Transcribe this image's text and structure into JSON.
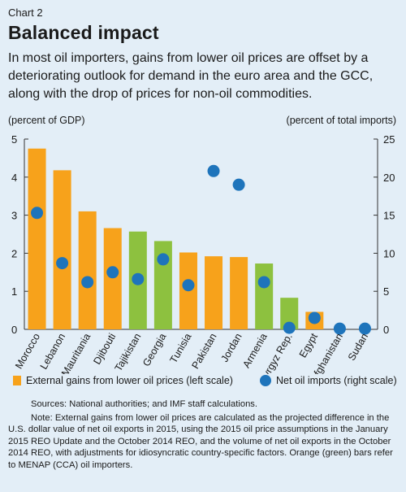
{
  "header": {
    "chart_label": "Chart 2",
    "title": "Balanced impact",
    "subtitle": "In most oil importers, gains from lower oil prices are offset by a deteriorating outlook for demand in the euro area and the GCC, along with the drop of prices for non-oil commodities."
  },
  "axes": {
    "left_label": "(percent of GDP)",
    "right_label": "(percent of total imports)"
  },
  "legend": {
    "bars_label": "External gains from lower oil prices (left scale)",
    "dots_label": "Net oil imports (right scale)"
  },
  "notes": {
    "source": "Sources: National authorities; and IMF staff calculations.",
    "note": "Note: External  gains from lower oil prices are calculated as the projected difference in the U.S. dollar value of net oil exports in 2015, using the 2015 oil price assumptions in the January 2015 REO Update and the October 2014 REO, and the volume of net oil exports in the October 2014 REO, with adjustments for idiosyncratic country-specific factors. Orange (green) bars refer to MENAP (CCA) oil importers."
  },
  "colors": {
    "orange": "#f7a21b",
    "green": "#8dc13f",
    "dot": "#1e74bb",
    "background": "#e3eef7"
  },
  "chart_data": {
    "type": "bar",
    "categories": [
      "Morocco",
      "Lebanon",
      "Mauritania",
      "Djibouti",
      "Tajikistan",
      "Georgia",
      "Tunisia",
      "Pakistan",
      "Jordan",
      "Armenia",
      "Kyrgyz Rep.",
      "Egypt",
      "Afghanistan",
      "Sudan"
    ],
    "groups": [
      "MENAP",
      "MENAP",
      "MENAP",
      "MENAP",
      "CCA",
      "CCA",
      "MENAP",
      "MENAP",
      "MENAP",
      "CCA",
      "CCA",
      "MENAP",
      "MENAP",
      "MENAP"
    ],
    "series": [
      {
        "name": "External gains from lower oil prices (left scale)",
        "axis": "left",
        "kind": "bar",
        "values": [
          4.75,
          4.18,
          3.1,
          2.66,
          2.57,
          2.32,
          2.02,
          1.92,
          1.9,
          1.73,
          0.83,
          0.46,
          0.0,
          0.0
        ]
      },
      {
        "name": "Net oil imports (right scale)",
        "axis": "right",
        "kind": "scatter",
        "values": [
          15.3,
          8.7,
          6.2,
          7.5,
          6.6,
          9.2,
          5.8,
          20.8,
          19.0,
          6.2,
          0.2,
          1.5,
          0.1,
          0.1
        ]
      }
    ],
    "ylim_left": [
      0,
      5
    ],
    "yticks_left": [
      0,
      1,
      2,
      3,
      4,
      5
    ],
    "ylim_right": [
      0,
      25
    ],
    "yticks_right": [
      0,
      5,
      10,
      15,
      20,
      25
    ],
    "ylabel_left": "(percent of GDP)",
    "ylabel_right": "(percent of total imports)",
    "grid": false,
    "legend_position": "bottom"
  }
}
